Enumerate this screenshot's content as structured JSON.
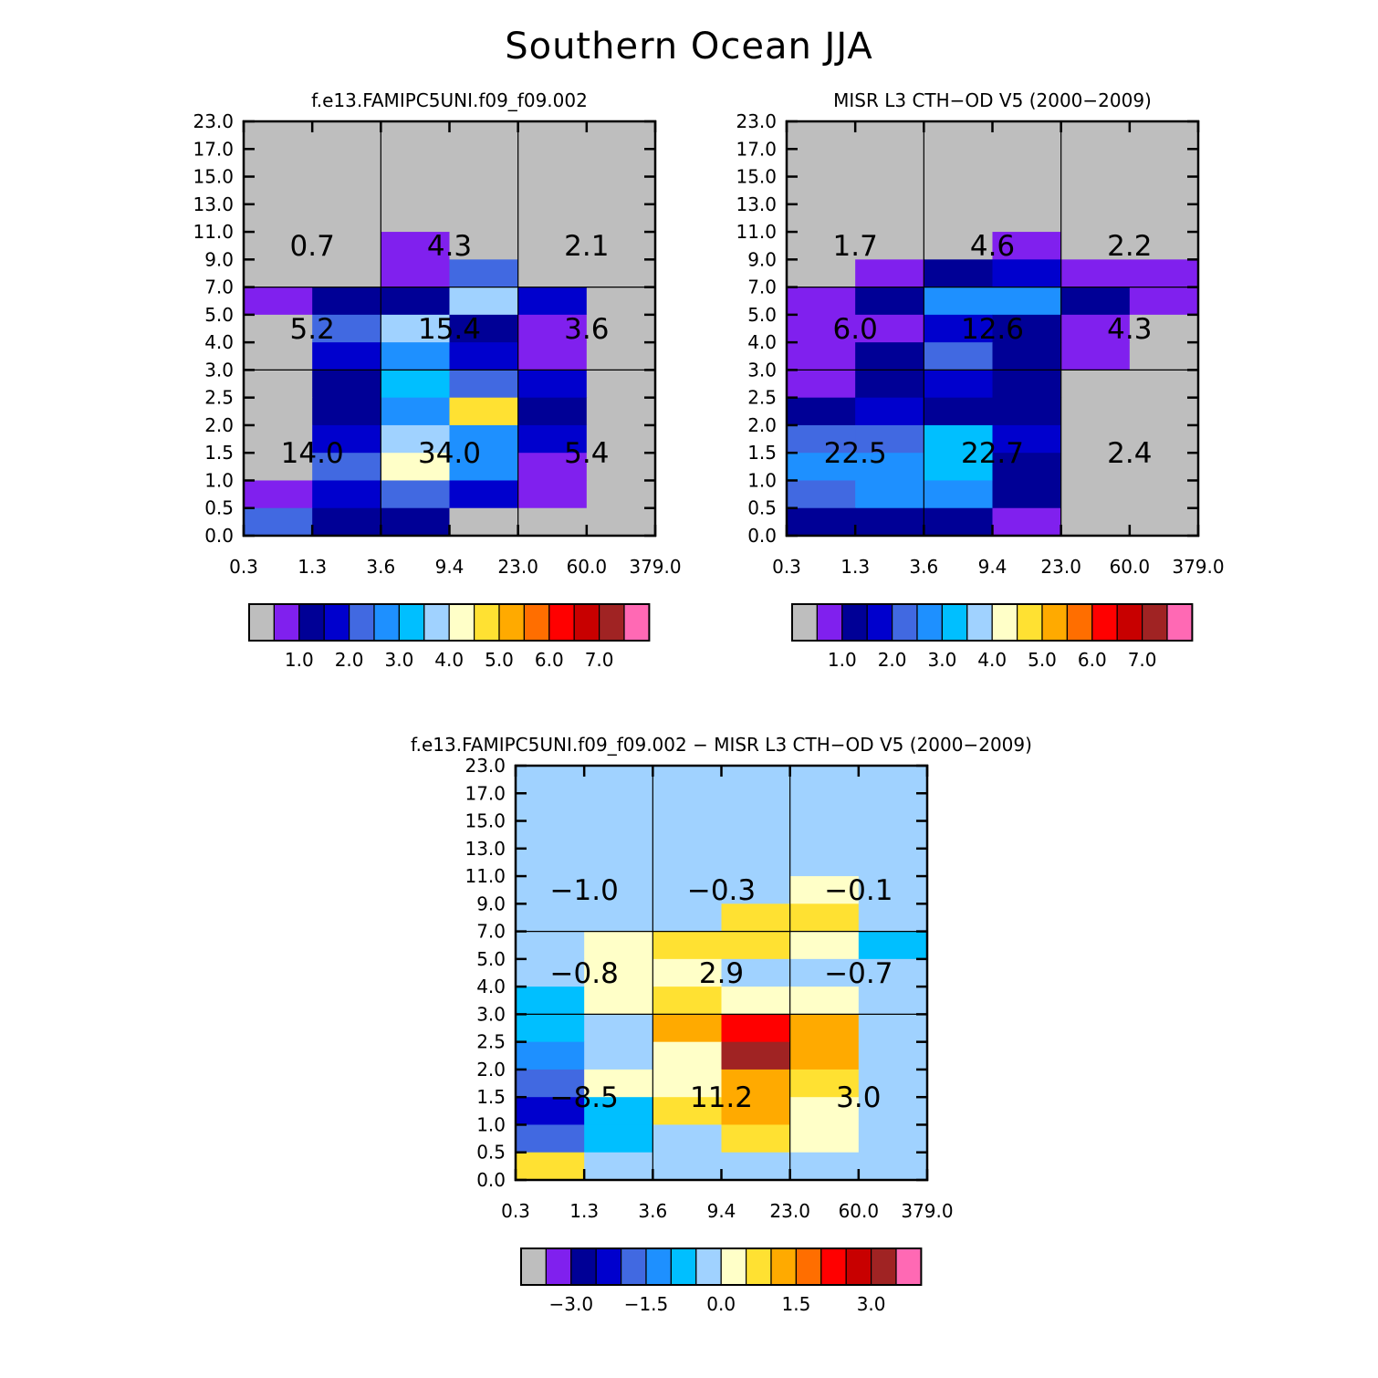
{
  "title": "Southern Ocean JJA",
  "y_ticks": [
    "0.0",
    "0.5",
    "1.0",
    "1.5",
    "2.0",
    "2.5",
    "3.0",
    "4.0",
    "5.0",
    "7.0",
    "9.0",
    "11.0",
    "13.0",
    "15.0",
    "17.0",
    "23.0"
  ],
  "x_ticks": [
    "0.3",
    "1.3",
    "3.6",
    "9.4",
    "23.0",
    "60.0",
    "379.0"
  ],
  "colors": {
    "A": "#bebebe",
    "B": "#8020ee",
    "C": "#000096",
    "D": "#0000cd",
    "E": "#4169e1",
    "F": "#1e90ff",
    "G": "#00bfff",
    "H": "#a0d2ff",
    "I": "#ffffc8",
    "J": "#ffe132",
    "K": "#ffaa00",
    "L": "#ff6e00",
    "M": "#ff0000",
    "N": "#c80000",
    "O": "#a02323",
    "P": "#ff69b4"
  },
  "chart_data": [
    {
      "type": "heatmap",
      "title": "f.e13.FAMIPC5UNI.f09_f09.002",
      "x_edges": [
        "0.3",
        "1.3",
        "3.6",
        "9.4",
        "23.0",
        "60.0",
        "379.0"
      ],
      "y_edges": [
        "0.0",
        "0.5",
        "1.0",
        "1.5",
        "2.0",
        "2.5",
        "3.0",
        "4.0",
        "5.0",
        "7.0",
        "9.0",
        "11.0",
        "13.0",
        "15.0",
        "17.0",
        "23.0"
      ],
      "grid_codes": [
        "AAAAAA",
        "AAAAAA",
        "AAAAAA",
        "AAAAAA",
        "AABAAA",
        "AABEAA",
        "BCCHDA",
        "AEHCBA",
        "ADFDBA",
        "ACGEDA",
        "ACFJCA",
        "ADHFDA",
        "AEIFBA",
        "BDEDBA",
        "ECCAAA"
      ],
      "region_values": [
        [
          "0.7",
          "4.3",
          "2.1"
        ],
        [
          "5.2",
          "15.4",
          "3.6"
        ],
        [
          "14.0",
          "34.0",
          "5.4"
        ]
      ],
      "colorbar": {
        "colors": [
          "A",
          "B",
          "C",
          "D",
          "E",
          "F",
          "G",
          "H",
          "I",
          "J",
          "K",
          "L",
          "M",
          "N",
          "O",
          "P"
        ],
        "labels": [
          "1.0",
          "2.0",
          "3.0",
          "4.0",
          "5.0",
          "6.0",
          "7.0"
        ]
      }
    },
    {
      "type": "heatmap",
      "title": "MISR L3 CTH-OD V5 (2000-2009)",
      "x_edges": [
        "0.3",
        "1.3",
        "3.6",
        "9.4",
        "23.0",
        "60.0",
        "379.0"
      ],
      "y_edges": [
        "0.0",
        "0.5",
        "1.0",
        "1.5",
        "2.0",
        "2.5",
        "3.0",
        "4.0",
        "5.0",
        "7.0",
        "9.0",
        "11.0",
        "13.0",
        "15.0",
        "17.0",
        "23.0"
      ],
      "grid_codes": [
        "AAAAAA",
        "AAAAAA",
        "AAAAAA",
        "AAAAAA",
        "AAABAA",
        "ABCDBB",
        "BCFFCB",
        "BBDCBA",
        "BCECBA",
        "BCDCAA",
        "CDCCAA",
        "EEGDAA",
        "FFGCAA",
        "EFFCAA",
        "CCCBAA"
      ],
      "region_values": [
        [
          "1.7",
          "4.6",
          "2.2"
        ],
        [
          "6.0",
          "12.6",
          "4.3"
        ],
        [
          "22.5",
          "22.7",
          "2.4"
        ]
      ],
      "colorbar": {
        "colors": [
          "A",
          "B",
          "C",
          "D",
          "E",
          "F",
          "G",
          "H",
          "I",
          "J",
          "K",
          "L",
          "M",
          "N",
          "O",
          "P"
        ],
        "labels": [
          "1.0",
          "2.0",
          "3.0",
          "4.0",
          "5.0",
          "6.0",
          "7.0"
        ]
      }
    },
    {
      "type": "heatmap",
      "title": "f.e13.FAMIPC5UNI.f09_f09.002 - MISR L3 CTH-OD V5 (2000-2009)",
      "x_edges": [
        "0.3",
        "1.3",
        "3.6",
        "9.4",
        "23.0",
        "60.0",
        "379.0"
      ],
      "y_edges": [
        "0.0",
        "0.5",
        "1.0",
        "1.5",
        "2.0",
        "2.5",
        "3.0",
        "4.0",
        "5.0",
        "7.0",
        "9.0",
        "11.0",
        "13.0",
        "15.0",
        "17.0",
        "23.0"
      ],
      "grid_codes": [
        "HHHHHH",
        "HHHHHH",
        "HHHHHH",
        "HHHHHH",
        "HHHHIH",
        "HHHJJH",
        "HIJJIG",
        "HIIHHH",
        "GIJIIH",
        "GHKMKH",
        "FHIOKH",
        "EIIKJH",
        "DGJKIH",
        "EGHJIH",
        "JHHHHH"
      ],
      "region_values": [
        [
          "-1.0",
          "-0.3",
          "-0.1"
        ],
        [
          "-0.8",
          "2.9",
          "-0.7"
        ],
        [
          "-8.5",
          "11.2",
          "3.0"
        ]
      ],
      "colorbar": {
        "colors": [
          "A",
          "B",
          "C",
          "D",
          "E",
          "F",
          "G",
          "H",
          "I",
          "J",
          "K",
          "L",
          "M",
          "N",
          "O",
          "P"
        ],
        "labels": [
          "-3.0",
          "-1.5",
          "0.0",
          "1.5",
          "3.0"
        ]
      }
    }
  ]
}
